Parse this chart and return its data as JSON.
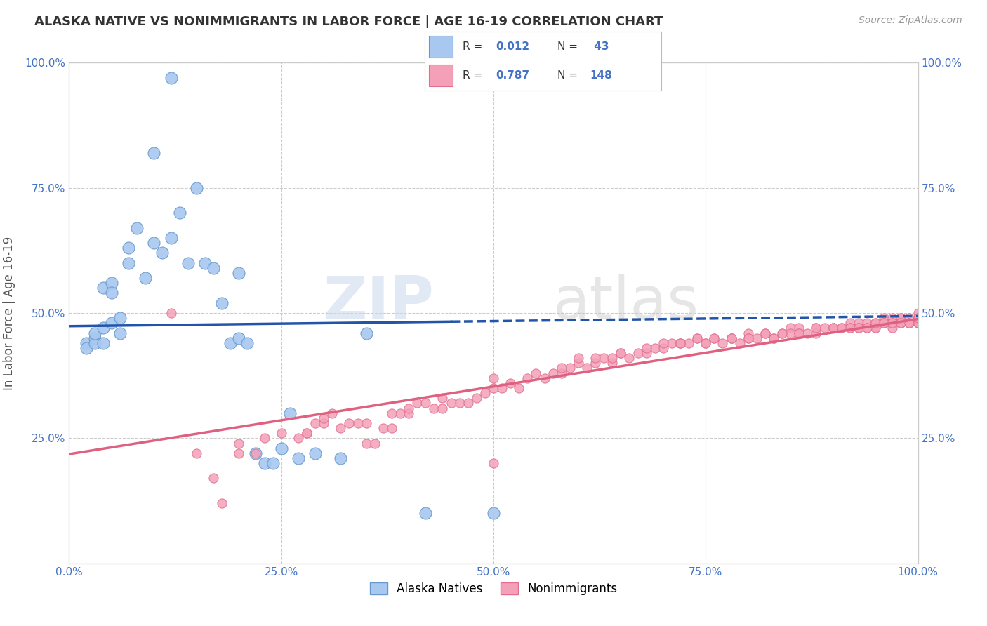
{
  "title": "ALASKA NATIVE VS NONIMMIGRANTS IN LABOR FORCE | AGE 16-19 CORRELATION CHART",
  "source": "Source: ZipAtlas.com",
  "ylabel": "In Labor Force | Age 16-19",
  "xlim": [
    0.0,
    1.0
  ],
  "ylim": [
    0.0,
    1.0
  ],
  "alaska_R": 0.012,
  "alaska_N": 43,
  "nonimm_R": 0.787,
  "nonimm_N": 148,
  "alaska_color": "#a8c8f0",
  "alaska_edge": "#6699cc",
  "nonimm_color": "#f4a0b8",
  "nonimm_edge": "#e07090",
  "line_alaska_color": "#2255aa",
  "line_nonimm_color": "#e06080",
  "watermark_zip": "ZIP",
  "watermark_atlas": "atlas",
  "background_color": "#ffffff",
  "grid_color": "#cccccc",
  "title_color": "#333333",
  "legend_label_alaska": "Alaska Natives",
  "legend_label_nonimm": "Nonimmigrants",
  "alaska_scatter_x": [
    0.12,
    0.04,
    0.05,
    0.05,
    0.02,
    0.02,
    0.03,
    0.03,
    0.03,
    0.04,
    0.04,
    0.05,
    0.06,
    0.06,
    0.07,
    0.07,
    0.08,
    0.09,
    0.1,
    0.1,
    0.11,
    0.12,
    0.13,
    0.14,
    0.15,
    0.16,
    0.17,
    0.18,
    0.19,
    0.2,
    0.2,
    0.21,
    0.22,
    0.23,
    0.24,
    0.25,
    0.26,
    0.27,
    0.29,
    0.32,
    0.35,
    0.42,
    0.5
  ],
  "alaska_scatter_y": [
    0.97,
    0.55,
    0.56,
    0.54,
    0.44,
    0.43,
    0.45,
    0.44,
    0.46,
    0.44,
    0.47,
    0.48,
    0.46,
    0.49,
    0.6,
    0.63,
    0.67,
    0.57,
    0.64,
    0.82,
    0.62,
    0.65,
    0.7,
    0.6,
    0.75,
    0.6,
    0.59,
    0.52,
    0.44,
    0.45,
    0.58,
    0.44,
    0.22,
    0.2,
    0.2,
    0.23,
    0.3,
    0.21,
    0.22,
    0.21,
    0.46,
    0.1,
    0.1
  ],
  "nonimm_scatter_x": [
    0.12,
    0.15,
    0.18,
    0.2,
    0.22,
    0.25,
    0.27,
    0.28,
    0.29,
    0.3,
    0.3,
    0.31,
    0.32,
    0.33,
    0.34,
    0.35,
    0.36,
    0.37,
    0.38,
    0.39,
    0.4,
    0.4,
    0.41,
    0.42,
    0.43,
    0.44,
    0.45,
    0.46,
    0.47,
    0.48,
    0.49,
    0.5,
    0.5,
    0.51,
    0.52,
    0.53,
    0.54,
    0.55,
    0.56,
    0.57,
    0.58,
    0.59,
    0.6,
    0.61,
    0.62,
    0.63,
    0.64,
    0.65,
    0.66,
    0.67,
    0.68,
    0.69,
    0.7,
    0.71,
    0.72,
    0.73,
    0.74,
    0.75,
    0.76,
    0.77,
    0.78,
    0.79,
    0.8,
    0.81,
    0.82,
    0.83,
    0.84,
    0.85,
    0.85,
    0.86,
    0.87,
    0.88,
    0.89,
    0.9,
    0.91,
    0.92,
    0.93,
    0.93,
    0.94,
    0.95,
    0.95,
    0.96,
    0.96,
    0.97,
    0.97,
    0.98,
    0.98,
    0.98,
    0.99,
    0.99,
    1.0,
    1.0,
    1.0,
    1.0,
    1.0,
    0.38,
    0.44,
    0.5,
    0.35,
    0.28,
    0.23,
    0.2,
    0.17,
    0.58,
    0.62,
    0.65,
    0.68,
    0.72,
    0.75,
    0.78,
    0.8,
    0.83,
    0.86,
    0.88,
    0.9,
    0.92,
    0.94,
    0.95,
    0.96,
    0.97,
    0.98,
    0.99,
    1.0,
    1.0,
    0.7,
    0.72,
    0.74,
    0.76,
    0.78,
    0.8,
    0.82,
    0.84,
    0.86,
    0.88,
    0.9,
    0.91,
    0.92,
    0.93,
    0.94,
    0.95,
    0.96,
    0.97,
    0.98,
    0.99,
    1.0,
    1.0,
    0.6,
    0.64
  ],
  "nonimm_scatter_y": [
    0.5,
    0.22,
    0.12,
    0.22,
    0.22,
    0.26,
    0.25,
    0.26,
    0.28,
    0.28,
    0.29,
    0.3,
    0.27,
    0.28,
    0.28,
    0.24,
    0.24,
    0.27,
    0.27,
    0.3,
    0.3,
    0.31,
    0.32,
    0.32,
    0.31,
    0.31,
    0.32,
    0.32,
    0.32,
    0.33,
    0.34,
    0.35,
    0.2,
    0.35,
    0.36,
    0.35,
    0.37,
    0.38,
    0.37,
    0.38,
    0.38,
    0.39,
    0.4,
    0.39,
    0.4,
    0.41,
    0.4,
    0.42,
    0.41,
    0.42,
    0.42,
    0.43,
    0.43,
    0.44,
    0.44,
    0.44,
    0.45,
    0.44,
    0.45,
    0.44,
    0.45,
    0.44,
    0.46,
    0.45,
    0.46,
    0.45,
    0.46,
    0.47,
    0.46,
    0.47,
    0.46,
    0.47,
    0.47,
    0.47,
    0.47,
    0.48,
    0.48,
    0.47,
    0.48,
    0.48,
    0.47,
    0.49,
    0.48,
    0.49,
    0.48,
    0.49,
    0.48,
    0.49,
    0.49,
    0.48,
    0.49,
    0.48,
    0.49,
    0.5,
    0.49,
    0.3,
    0.33,
    0.37,
    0.28,
    0.26,
    0.25,
    0.24,
    0.17,
    0.39,
    0.41,
    0.42,
    0.43,
    0.44,
    0.44,
    0.45,
    0.45,
    0.45,
    0.46,
    0.46,
    0.47,
    0.47,
    0.47,
    0.47,
    0.48,
    0.47,
    0.48,
    0.48,
    0.48,
    0.49,
    0.44,
    0.44,
    0.45,
    0.45,
    0.45,
    0.45,
    0.46,
    0.46,
    0.46,
    0.47,
    0.47,
    0.47,
    0.47,
    0.47,
    0.47,
    0.48,
    0.48,
    0.48,
    0.48,
    0.48,
    0.48,
    0.49,
    0.41,
    0.41
  ]
}
